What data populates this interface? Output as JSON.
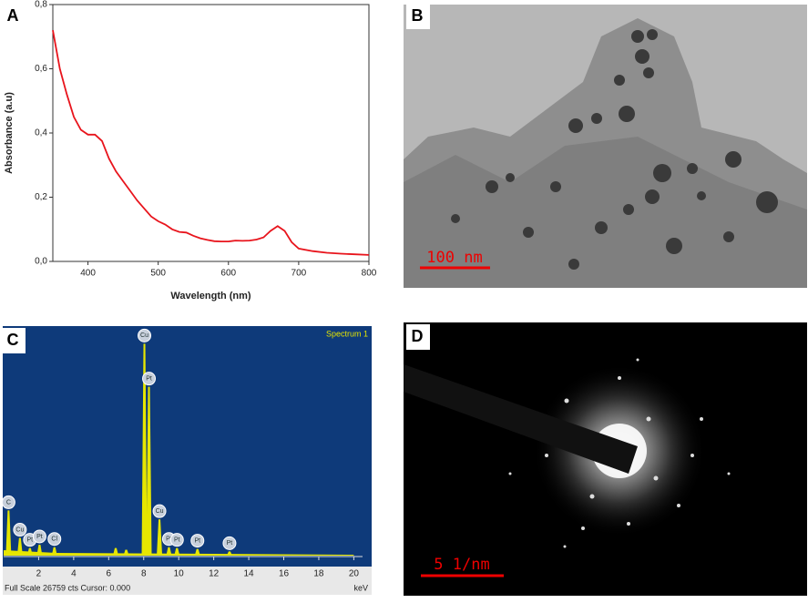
{
  "chart_data": [
    {
      "type": "line",
      "panel": "A",
      "xlabel": "Wavelength (nm)",
      "ylabel": "Absorbance (a.u)",
      "color": "#e8141c",
      "x": [
        350,
        360,
        370,
        380,
        390,
        400,
        410,
        420,
        430,
        440,
        450,
        460,
        470,
        480,
        490,
        500,
        510,
        520,
        530,
        540,
        550,
        560,
        570,
        580,
        590,
        600,
        610,
        620,
        630,
        640,
        650,
        660,
        670,
        680,
        690,
        700,
        720,
        740,
        760,
        780,
        800
      ],
      "values": [
        0.72,
        0.6,
        0.52,
        0.45,
        0.41,
        0.395,
        0.395,
        0.375,
        0.32,
        0.28,
        0.25,
        0.22,
        0.19,
        0.165,
        0.14,
        0.125,
        0.115,
        0.1,
        0.092,
        0.09,
        0.08,
        0.072,
        0.067,
        0.063,
        0.062,
        0.062,
        0.065,
        0.064,
        0.065,
        0.068,
        0.075,
        0.095,
        0.11,
        0.095,
        0.06,
        0.04,
        0.032,
        0.027,
        0.024,
        0.022,
        0.02
      ],
      "xlim": [
        350,
        800
      ],
      "xticks": [
        400,
        500,
        600,
        700,
        800
      ],
      "ylim": [
        0,
        0.8
      ],
      "yticks": [
        {
          "value": 0,
          "label": "0,0"
        },
        {
          "value": 0.2,
          "label": "0,2"
        },
        {
          "value": 0.4,
          "label": "0,4"
        },
        {
          "value": 0.6,
          "label": "0,6"
        },
        {
          "value": 0.8,
          "label": "0,8"
        }
      ]
    },
    {
      "type": "spectrum",
      "panel": "C",
      "title": "Spectrum 1",
      "xlabel": "keV",
      "footer": "Full Scale 26759 cts Cursor: 0.000",
      "color": "#e6e600",
      "x": [
        0.28,
        0.93,
        1.5,
        2.05,
        2.9,
        6.4,
        7.0,
        8.04,
        8.3,
        8.9,
        9.44,
        9.9,
        11.07,
        12.9
      ],
      "values": [
        5350,
        2100,
        900,
        1300,
        1000,
        900,
        700,
        25100,
        20000,
        4300,
        1000,
        900,
        800,
        500
      ],
      "labels": [
        "C",
        "Cu",
        "Pt",
        "Pt",
        "Cl",
        null,
        null,
        "Cu",
        "Pt",
        "Cu",
        "Pt",
        "Pt",
        "Pt",
        "Pt"
      ],
      "xlim": [
        0,
        20.5
      ],
      "xticks": [
        {
          "value": 2,
          "label": "2"
        },
        4,
        6,
        8,
        10,
        12,
        14,
        16,
        18,
        20
      ],
      "ylim": [
        0,
        26759
      ]
    }
  ],
  "images": [
    {
      "panel": "B",
      "scale_bar": "100 nm"
    },
    {
      "panel": "D",
      "scale_bar": "5 1/nm"
    }
  ]
}
